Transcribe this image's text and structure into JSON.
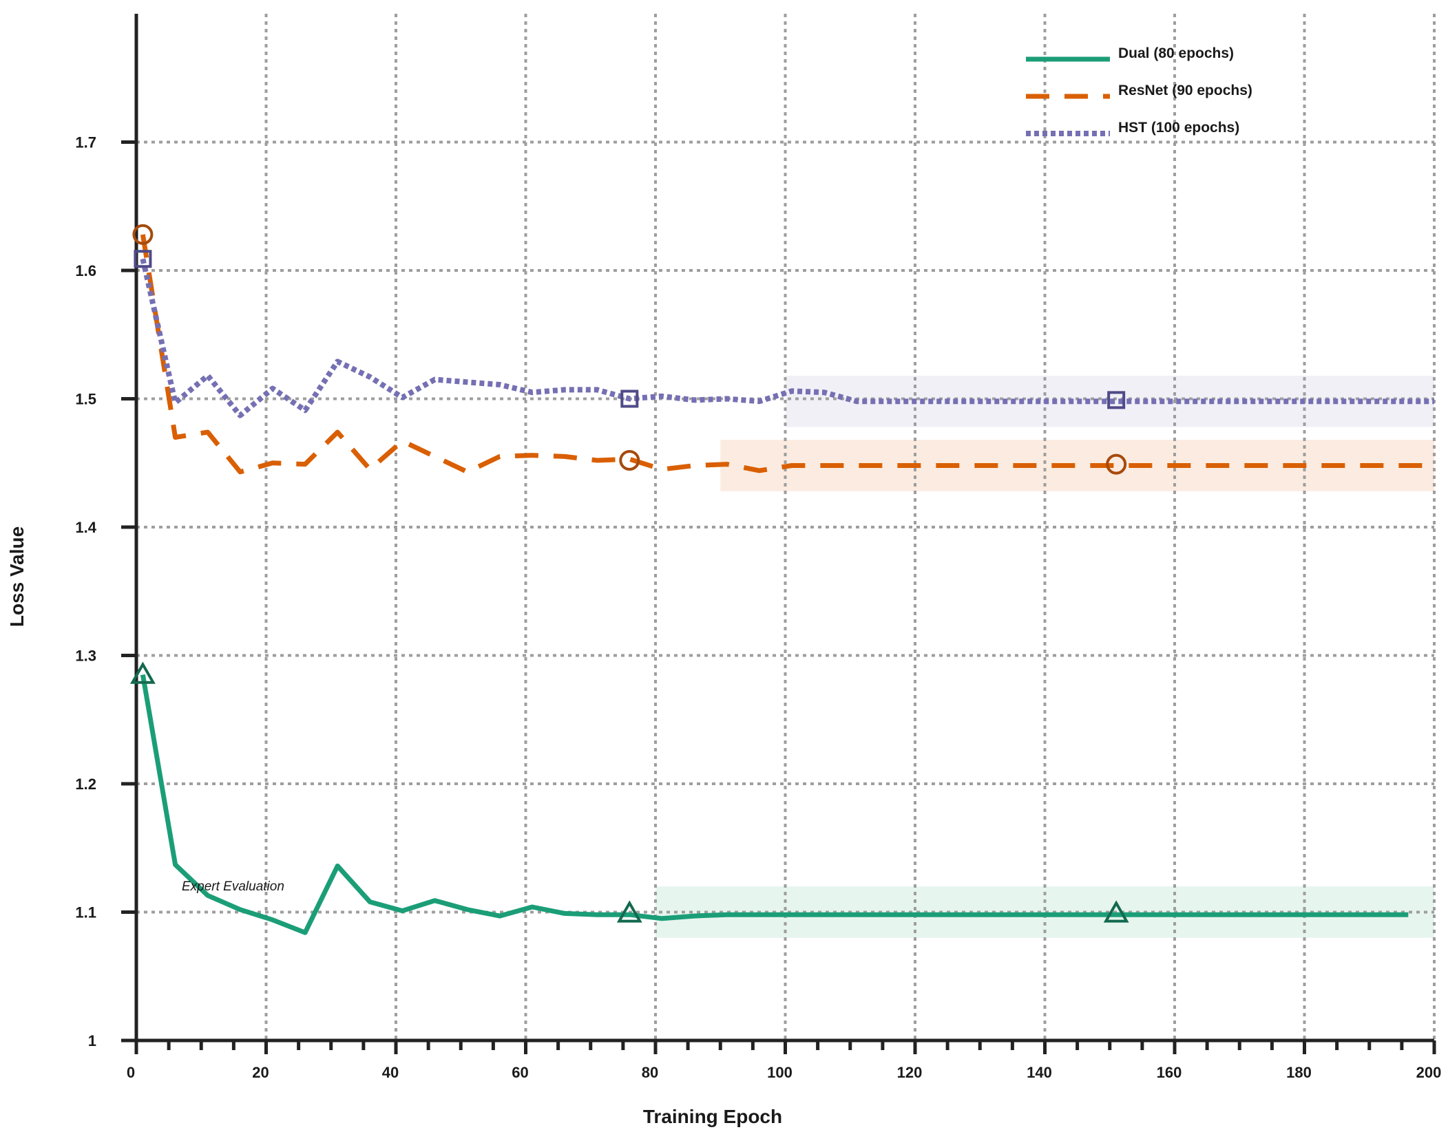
{
  "chart_data": {
    "type": "line",
    "xlabel": "Training Epoch",
    "ylabel": "Loss Value",
    "xlim": [
      0,
      200
    ],
    "ylim": [
      1.0,
      1.8
    ],
    "x_ticks": [
      0,
      20,
      40,
      60,
      80,
      100,
      120,
      140,
      160,
      180,
      200
    ],
    "y_ticks": [
      1.0,
      1.1,
      1.2,
      1.3,
      1.4,
      1.5,
      1.6,
      1.7
    ],
    "x_tick_labels": [
      "0",
      "20",
      "40",
      "60",
      "80",
      "100",
      "120",
      "140",
      "160",
      "180",
      "200"
    ],
    "y_tick_labels": [
      "1",
      "1.1",
      "1.2",
      "1.3",
      "1.4",
      "1.5",
      "1.6",
      "1.7"
    ],
    "grid": true,
    "legend_position": "top-right",
    "annotations": [
      {
        "text": "Expert Evaluation",
        "x": 7,
        "y": 1.12
      }
    ],
    "series": [
      {
        "name": "Dual (80 epochs)",
        "style": "solid",
        "color": "#1b9e77",
        "marker": "triangle",
        "marker_color": "#13694f",
        "x": [
          1,
          6,
          11,
          16,
          21,
          26,
          31,
          36,
          41,
          46,
          51,
          56,
          61,
          66,
          71,
          76,
          81,
          86,
          91,
          96,
          196
        ],
        "y": [
          1.285,
          1.137,
          1.113,
          1.102,
          1.094,
          1.084,
          1.136,
          1.108,
          1.101,
          1.109,
          1.102,
          1.097,
          1.104,
          1.099,
          1.098,
          1.098,
          1.095,
          1.097,
          1.098,
          1.098,
          1.098
        ],
        "markers_x": [
          1,
          76,
          151
        ],
        "markers_y": [
          1.285,
          1.099,
          1.099
        ],
        "band": {
          "x_start": 80,
          "x_end": 200,
          "y_low": 1.08,
          "y_high": 1.12,
          "color": "#e6f5ee"
        }
      },
      {
        "name": "ResNet (90 epochs)",
        "style": "dashed",
        "color": "#d95f02",
        "marker": "circle",
        "marker_color": "#a64a0c",
        "x": [
          1,
          6,
          11,
          16,
          21,
          26,
          31,
          36,
          41,
          46,
          51,
          56,
          61,
          66,
          71,
          76,
          81,
          86,
          91,
          96,
          101,
          200
        ],
        "y": [
          1.628,
          1.47,
          1.474,
          1.443,
          1.45,
          1.449,
          1.474,
          1.445,
          1.467,
          1.455,
          1.443,
          1.455,
          1.456,
          1.455,
          1.452,
          1.453,
          1.445,
          1.448,
          1.449,
          1.444,
          1.448,
          1.448
        ],
        "markers_x": [
          1,
          76,
          151
        ],
        "markers_y": [
          1.628,
          1.452,
          1.449
        ],
        "band": {
          "x_start": 90,
          "x_end": 200,
          "y_low": 1.428,
          "y_high": 1.468,
          "color": "#fcebe0"
        }
      },
      {
        "name": "HST (100 epochs)",
        "style": "dotted",
        "color": "#7570b3",
        "marker": "square",
        "marker_color": "#4f4a87",
        "x": [
          1,
          6,
          11,
          16,
          21,
          26,
          31,
          36,
          41,
          46,
          51,
          56,
          61,
          66,
          71,
          76,
          81,
          86,
          91,
          96,
          101,
          106,
          111,
          200
        ],
        "y": [
          1.609,
          1.497,
          1.518,
          1.487,
          1.508,
          1.491,
          1.529,
          1.517,
          1.501,
          1.515,
          1.513,
          1.511,
          1.505,
          1.507,
          1.507,
          1.5,
          1.502,
          1.499,
          1.5,
          1.498,
          1.506,
          1.505,
          1.498,
          1.498
        ],
        "markers_x": [
          1,
          76,
          151
        ],
        "markers_y": [
          1.609,
          1.5,
          1.499
        ],
        "band": {
          "x_start": 100,
          "x_end": 200,
          "y_low": 1.478,
          "y_high": 1.518,
          "color": "#f1f0f7"
        }
      }
    ]
  }
}
